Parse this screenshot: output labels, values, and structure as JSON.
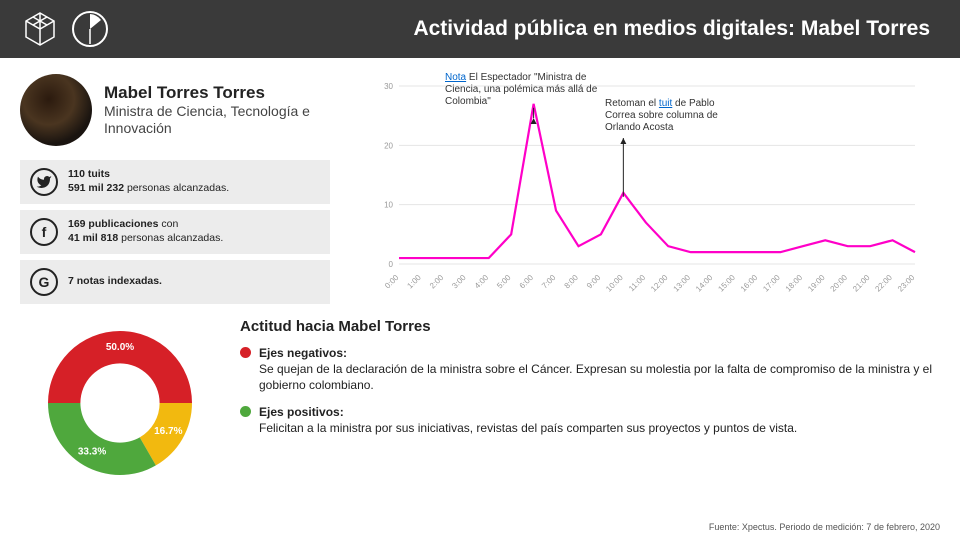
{
  "header": {
    "title": "Actividad pública en medios digitales: Mabel Torres"
  },
  "profile": {
    "name": "Mabel Torres Torres",
    "role": "Ministra de Ciencia, Tecnología e Innovación"
  },
  "stats": {
    "twitter": {
      "count": "110 tuits",
      "reach": "591 mil 232",
      "reach_suffix": " personas alcanzadas."
    },
    "facebook": {
      "count": "169 publicaciones",
      "count_suffix": " con",
      "reach": "41 mil 818",
      "reach_suffix": " personas alcanzadas."
    },
    "google": {
      "count": "7 notas indexadas."
    }
  },
  "line_chart": {
    "type": "line",
    "x_labels": [
      "0:00",
      "1:00",
      "2:00",
      "3:00",
      "4:00",
      "5:00",
      "6:00",
      "7:00",
      "8:00",
      "9:00",
      "10:00",
      "11:00",
      "12:00",
      "13:00",
      "14:00",
      "15:00",
      "16:00",
      "17:00",
      "18:00",
      "19:00",
      "20:00",
      "21:00",
      "22:00",
      "23:00"
    ],
    "values": [
      1,
      1,
      1,
      1,
      1,
      5,
      27,
      9,
      3,
      5,
      12,
      7,
      3,
      2,
      2,
      2,
      2,
      2,
      3,
      4,
      3,
      3,
      4,
      2
    ],
    "ylim": [
      0,
      30
    ],
    "yticks": [
      0,
      10,
      20,
      30
    ],
    "line_color": "#ff00c8",
    "line_width": 2.2,
    "grid_color": "#e5e5e5",
    "axis_color": "#cccccc",
    "label_color": "#999999",
    "label_fontsize": 8,
    "annotation1": {
      "link": "Nota",
      "text": " El Espectador \"Ministra de Ciencia, una polémica más allá de Colombia\"",
      "arrow_x_index": 6
    },
    "annotation2": {
      "prefix": "Retoman el ",
      "link": "tuit",
      "suffix": " de Pablo Correa sobre columna de Orlando Acosta",
      "arrow_x_index": 10
    }
  },
  "donut": {
    "type": "donut",
    "slices": [
      {
        "label": "50.0%",
        "value": 50.0,
        "color": "#d62027"
      },
      {
        "label": "16.7%",
        "value": 16.7,
        "color": "#f2b90f"
      },
      {
        "label": "33.3%",
        "value": 33.3,
        "color": "#4fa83d"
      }
    ],
    "inner_radius_pct": 55
  },
  "attitude": {
    "title": "Actitud hacia Mabel Torres",
    "negative": {
      "label": "Ejes negativos:",
      "text": "Se quejan de la declaración de la ministra sobre el Cáncer. Expresan su molestia por la falta de compromiso de la ministra y el gobierno colombiano.",
      "color": "#d62027"
    },
    "positive": {
      "label": "Ejes positivos:",
      "text": "Felicitan a la ministra por sus iniciativas, revistas del país comparten sus proyectos y puntos de vista.",
      "color": "#4fa83d"
    }
  },
  "source": "Fuente: Xpectus. Periodo de medición:  7 de febrero, 2020"
}
